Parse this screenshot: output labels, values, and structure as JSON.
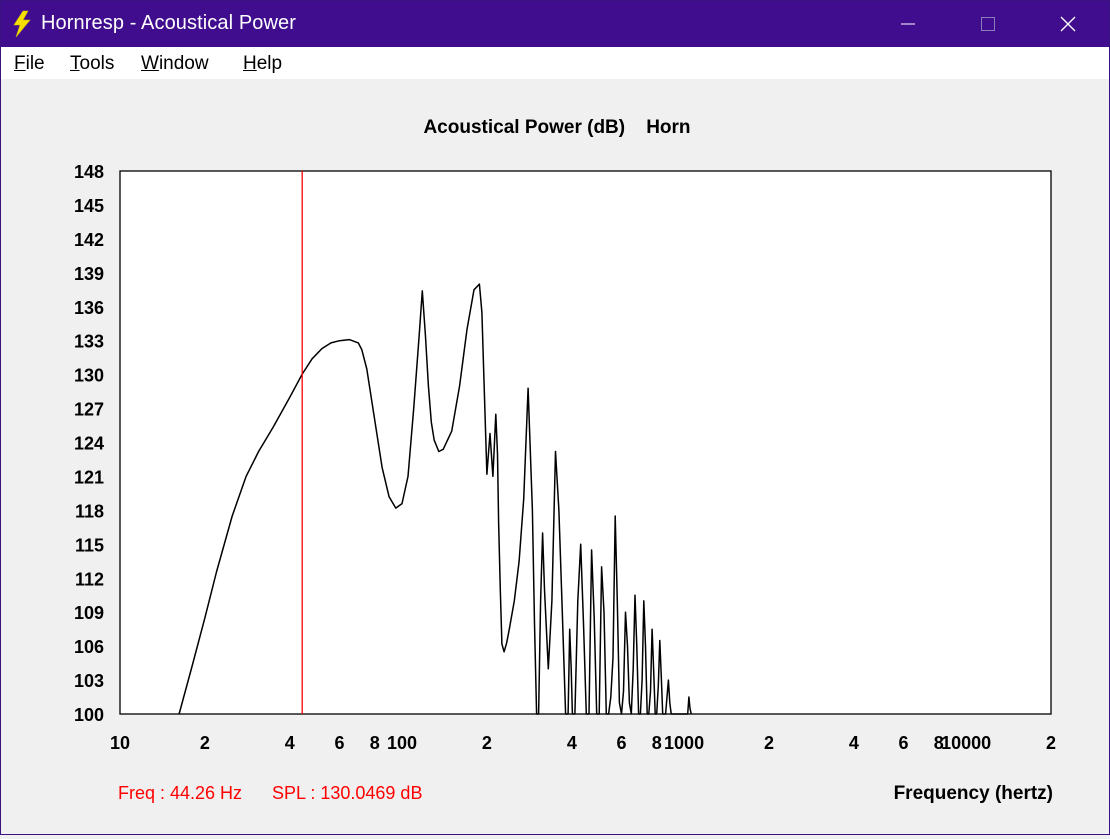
{
  "window": {
    "title": "Hornresp - Acoustical Power",
    "icon": "lightning-bolt-icon"
  },
  "menu": [
    {
      "label": "File",
      "accel": "F",
      "rest": "ile"
    },
    {
      "label": "Tools",
      "accel": "T",
      "rest": "ools"
    },
    {
      "label": "Window",
      "accel": "W",
      "rest": "indow"
    },
    {
      "label": "Help",
      "accel": "H",
      "rest": "elp"
    }
  ],
  "status": {
    "freq": "Freq : 44.26 Hz",
    "spl": "SPL : 130.0469 dB"
  },
  "colors": {
    "titlebar": "#3f0d8e",
    "cursor": "#ff0000",
    "status_text": "#ff0000",
    "curve": "#000000",
    "grid": "#c8c8c8"
  },
  "chart_data": {
    "type": "line",
    "title": "Acoustical Power (dB)    Horn",
    "xlabel": "Frequency (hertz)",
    "ylabel": "",
    "x_scale": "log",
    "xlim": [
      10,
      20000
    ],
    "ylim": [
      100,
      148
    ],
    "y_ticks": [
      100,
      103,
      106,
      109,
      112,
      115,
      118,
      121,
      124,
      127,
      130,
      133,
      136,
      139,
      142,
      145,
      148
    ],
    "x_tick_labels": [
      {
        "x": 10,
        "label": "10"
      },
      {
        "x": 20,
        "label": "2"
      },
      {
        "x": 40,
        "label": "4"
      },
      {
        "x": 60,
        "label": "6"
      },
      {
        "x": 80,
        "label": "8"
      },
      {
        "x": 100,
        "label": "100"
      },
      {
        "x": 200,
        "label": "2"
      },
      {
        "x": 400,
        "label": "4"
      },
      {
        "x": 600,
        "label": "6"
      },
      {
        "x": 800,
        "label": "8"
      },
      {
        "x": 1000,
        "label": "1000"
      },
      {
        "x": 2000,
        "label": "2"
      },
      {
        "x": 4000,
        "label": "4"
      },
      {
        "x": 6000,
        "label": "6"
      },
      {
        "x": 8000,
        "label": "8"
      },
      {
        "x": 10000,
        "label": "10000"
      },
      {
        "x": 20000,
        "label": "2"
      }
    ],
    "grid": true,
    "cursor_x": 44.26,
    "series": [
      {
        "x": [
          16.2,
          18,
          20,
          22,
          25,
          28,
          31,
          35,
          40,
          44.26,
          48,
          52,
          56,
          60,
          65,
          70,
          72,
          75,
          80,
          85,
          90,
          95,
          100,
          105,
          110,
          115,
          118,
          121,
          124,
          127,
          130,
          135,
          140,
          150,
          160,
          170,
          180,
          188,
          192,
          195,
          198,
          200,
          205,
          210,
          215,
          218,
          220,
          223,
          226,
          230,
          235,
          240,
          250,
          260,
          270,
          280,
          290,
          295,
          300,
          305,
          310,
          315,
          320,
          330,
          340,
          350,
          360,
          370,
          380,
          388,
          393,
          398,
          402,
          405,
          410,
          420,
          430,
          440,
          450,
          460,
          470,
          480,
          490,
          500,
          510,
          520,
          530,
          540,
          550,
          560,
          570,
          580,
          590,
          600,
          610,
          620,
          630,
          640,
          650,
          660,
          670,
          680,
          690,
          700,
          710,
          720,
          730,
          740,
          750,
          760,
          770,
          780,
          790,
          800,
          810,
          820,
          830,
          840,
          850,
          860,
          870,
          880,
          890,
          900,
          910,
          920,
          930,
          940,
          950,
          960,
          970,
          980,
          990,
          1000,
          1010,
          1020,
          1030,
          1040,
          1050,
          1060
        ],
        "y": [
          100,
          104.2,
          108.5,
          112.6,
          117.5,
          121,
          123.2,
          125.4,
          128,
          130.05,
          131.4,
          132.3,
          132.8,
          133,
          133.1,
          132.8,
          132.2,
          130.5,
          126,
          121.8,
          119.2,
          118.2,
          118.6,
          121,
          127,
          133.5,
          137.4,
          133.5,
          129,
          125.8,
          124.2,
          123.2,
          123.4,
          125,
          129,
          134,
          137.5,
          138,
          135.5,
          130,
          124.6,
          121.2,
          124.8,
          121,
          126.5,
          123,
          117,
          111,
          106.2,
          105.5,
          106.3,
          107.5,
          110,
          113.5,
          119,
          128.8,
          118,
          108,
          100,
          100,
          110,
          116,
          111,
          104,
          110,
          123.2,
          118,
          109,
          100,
          100,
          107.5,
          104,
          100,
          100,
          100,
          110,
          115,
          108,
          100,
          100,
          114.5,
          108.5,
          100,
          100,
          113,
          109,
          100,
          100,
          101.5,
          105,
          117.5,
          110,
          101,
          100,
          102,
          109,
          106,
          101,
          100,
          104,
          110.5,
          106,
          100,
          100,
          103,
          110,
          106,
          100,
          100,
          102,
          107.5,
          104,
          100,
          100,
          102.5,
          106.5,
          103.5,
          100,
          100,
          100,
          101.5,
          103,
          101,
          100,
          100,
          100,
          100,
          100,
          100,
          100,
          100,
          100,
          100,
          100,
          100,
          100,
          100,
          101.5,
          100.5,
          100
        ]
      }
    ]
  }
}
